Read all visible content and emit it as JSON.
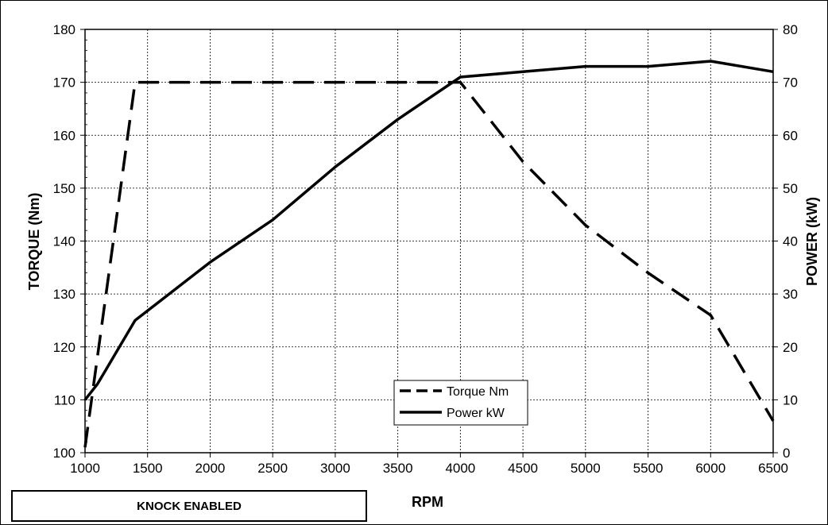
{
  "chart_data": {
    "type": "line",
    "title": "",
    "xlabel": "RPM",
    "ylabel": "TORQUE (Nm)",
    "y2label": "POWER (kW)",
    "xlim": [
      1000,
      6500
    ],
    "ylim": [
      100,
      180
    ],
    "y2lim": [
      0,
      80
    ],
    "x_ticks": [
      "1000",
      "1500",
      "2000",
      "2500",
      "3000",
      "3500",
      "4000",
      "4500",
      "5000",
      "5500",
      "6000",
      "6500"
    ],
    "y_ticks": [
      "100",
      "110",
      "120",
      "130",
      "140",
      "150",
      "160",
      "170",
      "180"
    ],
    "y2_ticks": [
      "0",
      "10",
      "20",
      "30",
      "40",
      "50",
      "60",
      "70",
      "80"
    ],
    "grid": true,
    "legend_position": "bottom-center",
    "series": [
      {
        "name": "Torque Nm",
        "axis": "left",
        "style": "dashed",
        "x": [
          1000,
          1400,
          4000,
          4500,
          5000,
          5500,
          6000,
          6500
        ],
        "y": [
          101,
          170,
          170,
          155,
          143,
          134,
          126,
          106
        ]
      },
      {
        "name": "Power kW",
        "axis": "right",
        "style": "solid",
        "x": [
          1000,
          1100,
          1400,
          2000,
          2500,
          3000,
          3500,
          4000,
          4500,
          5000,
          5500,
          6000,
          6500
        ],
        "y": [
          10,
          13,
          25,
          36,
          44,
          54,
          63,
          71,
          72,
          73,
          73,
          74,
          72
        ]
      }
    ]
  },
  "annotation": {
    "knock_label": "KNOCK ENABLED"
  }
}
